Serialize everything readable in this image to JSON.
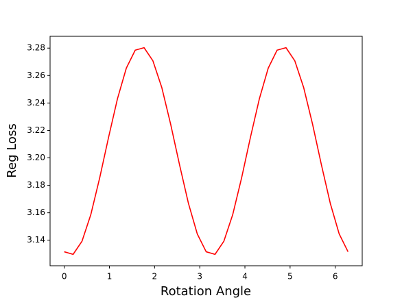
{
  "chart_data": {
    "type": "line",
    "x_label": "Rotation Angle",
    "y_label": "Reg Loss",
    "x": [
      0,
      0.196,
      0.393,
      0.589,
      0.785,
      0.982,
      1.178,
      1.374,
      1.571,
      1.767,
      1.963,
      2.16,
      2.356,
      2.553,
      2.749,
      2.945,
      3.142,
      3.338,
      3.534,
      3.731,
      3.927,
      4.123,
      4.32,
      4.516,
      4.712,
      4.909,
      5.105,
      5.301,
      5.498,
      5.694,
      5.89,
      6.087,
      6.283
    ],
    "series": [
      {
        "color": "#ff0000",
        "values": [
          3.1316,
          3.1297,
          3.1393,
          3.1588,
          3.1855,
          3.2151,
          3.2431,
          3.2654,
          3.2785,
          3.2803,
          3.2707,
          3.2512,
          3.2245,
          3.1949,
          3.1669,
          3.1446,
          3.1316,
          3.1297,
          3.1393,
          3.1588,
          3.1855,
          3.2151,
          3.2431,
          3.2654,
          3.2785,
          3.2803,
          3.2707,
          3.2512,
          3.2245,
          3.1949,
          3.1669,
          3.1446,
          3.1316
        ]
      }
    ],
    "xlim": [
      -0.314,
      6.597
    ],
    "ylim": [
      3.1214,
      3.2886
    ],
    "xticks": [
      0,
      1,
      2,
      3,
      4,
      5,
      6
    ],
    "yticks": [
      3.14,
      3.16,
      3.18,
      {
        "value": 3.2,
        "label": "3.20"
      },
      3.22,
      3.24,
      3.26,
      3.28
    ]
  }
}
